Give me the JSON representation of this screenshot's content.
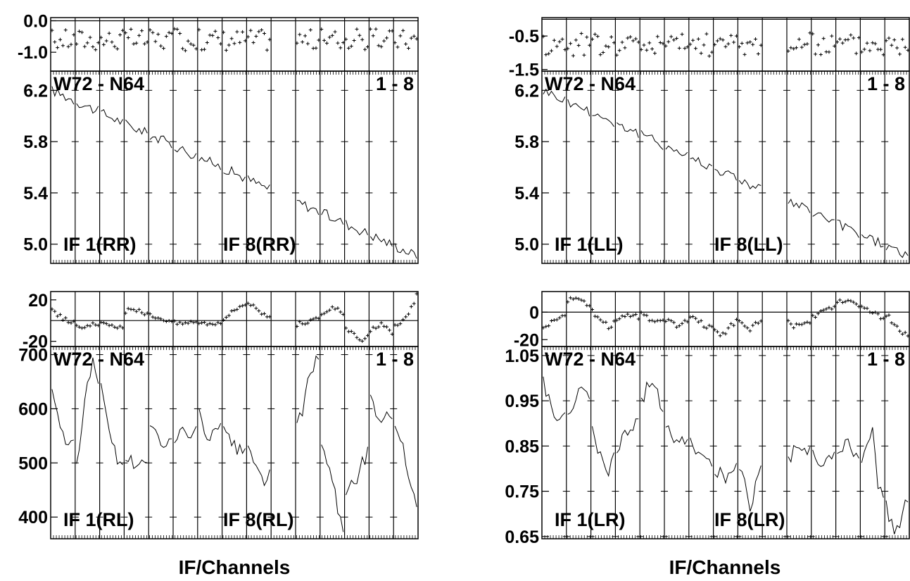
{
  "chart_data": [
    {
      "type": "line",
      "source": "W72 - N64",
      "channel_range": "1 - 8",
      "xlabel": "IF/Channels",
      "stokes": "RR",
      "if_labels": [
        "IF 1(RR)",
        "IF 8(RR)"
      ],
      "phase_panel": {
        "type": "scatter",
        "ylim": [
          -1.6,
          0.1
        ],
        "ticks": [
          0.0,
          -1.0
        ],
        "reference_line": 0.0
      },
      "amp_panel": {
        "type": "line",
        "ylim": [
          4.85,
          6.35
        ],
        "ticks": [
          6.2,
          5.8,
          5.4,
          5.0
        ]
      },
      "if_count": 14,
      "gap_ifs": [
        9
      ],
      "amp_start": 6.2,
      "amp_end": 4.9,
      "phase_mean": -0.6,
      "phase_noise": 0.35
    },
    {
      "type": "line",
      "source": "W72 - N64",
      "channel_range": "1 - 8",
      "xlabel": "IF/Channels",
      "stokes": "LL",
      "if_labels": [
        "IF 1(LL)",
        "IF 8(LL)"
      ],
      "phase_panel": {
        "type": "scatter",
        "ylim": [
          -1.55,
          0.05
        ],
        "ticks": [
          -0.5,
          -1.5
        ],
        "reference_line": 0.0
      },
      "amp_panel": {
        "type": "line",
        "ylim": [
          4.85,
          6.35
        ],
        "ticks": [
          6.2,
          5.8,
          5.4,
          5.0
        ]
      },
      "if_count": 14,
      "gap_ifs": [
        9
      ],
      "amp_start": 6.2,
      "amp_end": 4.9,
      "phase_mean": -0.75,
      "phase_noise": 0.35
    },
    {
      "type": "line",
      "source": "W72 - N64",
      "channel_range": "1 - 8",
      "xlabel": "IF/Channels",
      "stokes": "RL",
      "if_labels": [
        "IF 1(RL)",
        "IF 8(RL)"
      ],
      "phase_panel": {
        "type": "scatter",
        "ylim": [
          -25,
          28
        ],
        "ticks": [
          20,
          -20
        ],
        "reference_line": 0
      },
      "amp_panel": {
        "type": "line",
        "ylim": [
          360,
          715
        ],
        "ticks": [
          700,
          600,
          500,
          400
        ]
      },
      "if_count": 14,
      "gap_ifs": [
        9
      ],
      "amp_ifs": [
        [
          640,
          590,
          560,
          520,
          540
        ],
        [
          510,
          560,
          650,
          690,
          660
        ],
        [
          640,
          580,
          540,
          505,
          500
        ],
        [
          510,
          505,
          500,
          498,
          496
        ],
        [
          560,
          555,
          545,
          540,
          535
        ],
        [
          545,
          560,
          550,
          545,
          555
        ],
        [
          600,
          560,
          545,
          555,
          560
        ],
        [
          560,
          540,
          530,
          520,
          515
        ],
        [
          520,
          500,
          490,
          470,
          480
        ],
        [],
        [
          560,
          600,
          650,
          680,
          690
        ],
        [
          520,
          500,
          480,
          420,
          380
        ],
        [
          430,
          460,
          470,
          500,
          520
        ],
        [
          620,
          600,
          580,
          590,
          585
        ],
        [
          570,
          550,
          500,
          460,
          410
        ]
      ],
      "phase_ifs": [
        [
          10,
          6,
          2,
          0,
          -2
        ],
        [
          -4,
          -6,
          -5,
          -4,
          -5
        ],
        [
          -3,
          -2,
          -6,
          -8,
          -6
        ],
        [
          8,
          12,
          10,
          8,
          6
        ],
        [
          6,
          4,
          2,
          1,
          0
        ],
        [
          -2,
          -3,
          -2,
          -1,
          -2
        ],
        [
          -1,
          -2,
          -3,
          -2,
          -1
        ],
        [
          2,
          6,
          10,
          14,
          16
        ],
        [
          18,
          14,
          10,
          6,
          4
        ],
        [],
        [
          -4,
          -2,
          -1,
          0,
          2
        ],
        [
          4,
          8,
          12,
          10,
          6
        ],
        [
          -8,
          -12,
          -16,
          -18,
          -14
        ],
        [
          -10,
          -6,
          -4,
          -8,
          -12
        ],
        [
          -6,
          -2,
          4,
          12,
          24
        ]
      ]
    },
    {
      "type": "line",
      "source": "W72 - N64",
      "channel_range": "1 - 8",
      "xlabel": "IF/Channels",
      "stokes": "LR",
      "if_labels": [
        "IF 1(LR)",
        "IF 8(LR)"
      ],
      "phase_panel": {
        "type": "scatter",
        "ylim": [
          -25,
          15
        ],
        "ticks": [
          0,
          -20
        ],
        "reference_line": 0
      },
      "amp_panel": {
        "type": "line",
        "ylim": [
          0.645,
          1.07
        ],
        "ticks": [
          1.05,
          0.95,
          0.85,
          0.75,
          0.65
        ]
      },
      "if_count": 14,
      "gap_ifs": [
        9
      ],
      "amp_ifs": [
        [
          1.0,
          0.95,
          0.92,
          0.9,
          0.93
        ],
        [
          0.92,
          0.95,
          0.98,
          0.96,
          0.97
        ],
        [
          0.9,
          0.85,
          0.82,
          0.8,
          0.83
        ],
        [
          0.85,
          0.86,
          0.88,
          0.9,
          0.92
        ],
        [
          0.95,
          0.98,
          1.0,
          0.96,
          0.92
        ],
        [
          0.9,
          0.87,
          0.85,
          0.86,
          0.88
        ],
        [
          0.86,
          0.84,
          0.83,
          0.82,
          0.81
        ],
        [
          0.8,
          0.79,
          0.78,
          0.8,
          0.81
        ],
        [
          0.8,
          0.78,
          0.7,
          0.76,
          0.8
        ],
        [],
        [
          0.82,
          0.84,
          0.86,
          0.85,
          0.84
        ],
        [
          0.83,
          0.82,
          0.81,
          0.82,
          0.83
        ],
        [
          0.82,
          0.84,
          0.86,
          0.84,
          0.82
        ],
        [
          0.8,
          0.85,
          0.88,
          0.76,
          0.74
        ],
        [
          0.72,
          0.68,
          0.66,
          0.7,
          0.74
        ]
      ],
      "phase_ifs": [
        [
          -12,
          -8,
          -6,
          -4,
          -2
        ],
        [
          8,
          10,
          9,
          7,
          4
        ],
        [
          0,
          -4,
          -8,
          -10,
          -8
        ],
        [
          -6,
          -4,
          -2,
          -1,
          -3
        ],
        [
          -2,
          -4,
          -6,
          -5,
          -4
        ],
        [
          -6,
          -8,
          -10,
          -7,
          -5
        ],
        [
          -4,
          -6,
          -8,
          -10,
          -12
        ],
        [
          -14,
          -18,
          -16,
          -10,
          -6
        ],
        [
          -8,
          -10,
          -12,
          -8,
          -6
        ],
        [],
        [
          -8,
          -10,
          -9,
          -7,
          -6
        ],
        [
          -4,
          -2,
          0,
          2,
          4
        ],
        [
          6,
          8,
          10,
          8,
          6
        ],
        [
          4,
          2,
          0,
          -2,
          -4
        ],
        [
          -2,
          -6,
          -10,
          -14,
          -18
        ]
      ]
    }
  ]
}
